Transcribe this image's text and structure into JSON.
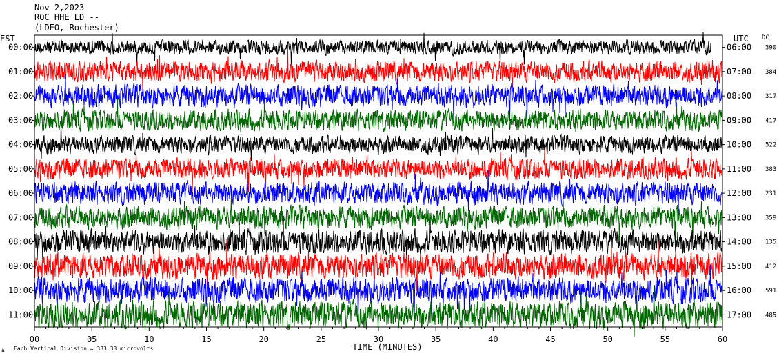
{
  "header": {
    "date": "Nov 2,2023",
    "station": "ROC HHE LD --",
    "network": "(LDEO, Rochester)"
  },
  "chart_data": {
    "type": "line",
    "left_axis_title": "EST",
    "right_axis_title": "UTC",
    "dc_title": "DC",
    "xlabel": "TIME (MINUTES)",
    "xlim": [
      0,
      60
    ],
    "x_ticks": [
      "00",
      "05",
      "10",
      "15",
      "20",
      "25",
      "30",
      "35",
      "40",
      "45",
      "50",
      "55",
      "60"
    ],
    "colors": [
      "#000000",
      "#ff0000",
      "#0000ff",
      "#006600"
    ],
    "rows": [
      {
        "est": "00:00",
        "utc": "06:00",
        "dc": "390",
        "amp": 9,
        "end": 59.0
      },
      {
        "est": "01:00",
        "utc": "07:00",
        "dc": "384",
        "amp": 13,
        "end": 60
      },
      {
        "est": "02:00",
        "utc": "08:00",
        "dc": "317",
        "amp": 14,
        "end": 60
      },
      {
        "est": "03:00",
        "utc": "09:00",
        "dc": "417",
        "amp": 13,
        "end": 60
      },
      {
        "est": "04:00",
        "utc": "10:00",
        "dc": "522",
        "amp": 11,
        "end": 60
      },
      {
        "est": "05:00",
        "utc": "11:00",
        "dc": "383",
        "amp": 13,
        "end": 60
      },
      {
        "est": "06:00",
        "utc": "12:00",
        "dc": "231",
        "amp": 14,
        "end": 60
      },
      {
        "est": "07:00",
        "utc": "13:00",
        "dc": "359",
        "amp": 14,
        "end": 60
      },
      {
        "est": "08:00",
        "utc": "14:00",
        "dc": "135",
        "amp": 15,
        "end": 60
      },
      {
        "est": "09:00",
        "utc": "15:00",
        "dc": "412",
        "amp": 16,
        "end": 60
      },
      {
        "est": "10:00",
        "utc": "16:00",
        "dc": "591",
        "amp": 16,
        "end": 60
      },
      {
        "est": "11:00",
        "utc": "17:00",
        "dc": "485",
        "amp": 17,
        "end": 60
      }
    ],
    "footer_note": "Each Vertical Division = 333.33 microvolts",
    "corner_mark": "A"
  }
}
